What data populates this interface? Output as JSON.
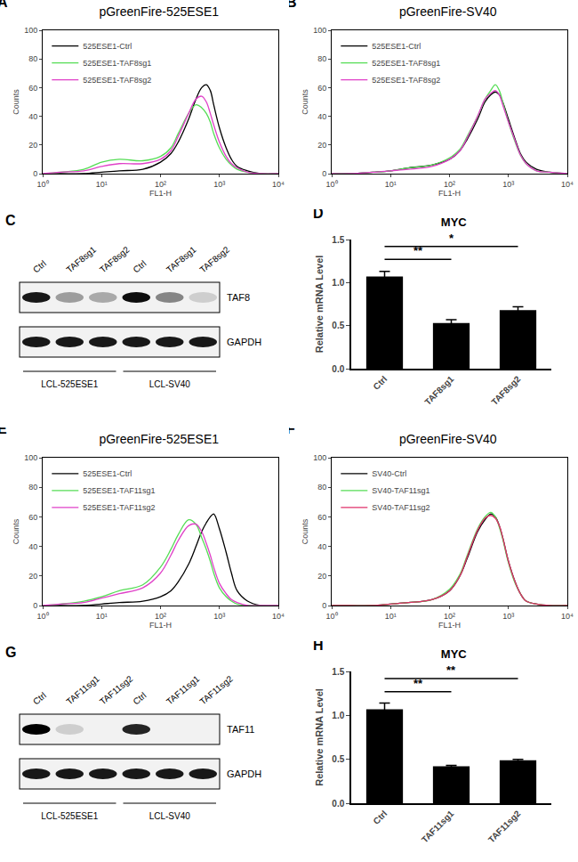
{
  "chart_data": [
    {
      "type": "line",
      "panel_label": "A",
      "title": "pGreenFire-525ESE1",
      "x_label": "FL1-H",
      "y_label": "Counts",
      "log": "x",
      "x": [
        1,
        2,
        5,
        10,
        20,
        50,
        100,
        150,
        200,
        300,
        400,
        500,
        600,
        700,
        800,
        1000,
        1300,
        1600,
        2000,
        3000,
        5000,
        10000
      ],
      "series": [
        {
          "name": "525ESE1-Ctrl",
          "color": "#000000",
          "values": [
            0,
            0,
            0,
            1,
            2,
            3,
            8,
            14,
            22,
            38,
            52,
            60,
            62,
            58,
            48,
            32,
            18,
            10,
            5,
            2,
            0,
            0
          ]
        },
        {
          "name": "525ESE1-TAF8sg1",
          "color": "#55dd55",
          "values": [
            0,
            1,
            3,
            8,
            10,
            9,
            12,
            18,
            28,
            42,
            48,
            46,
            42,
            36,
            28,
            18,
            10,
            6,
            3,
            1,
            0,
            0
          ]
        },
        {
          "name": "525ESE1-TAF8sg2",
          "color": "#e040c8",
          "values": [
            0,
            1,
            2,
            5,
            7,
            7,
            10,
            16,
            26,
            42,
            52,
            54,
            50,
            42,
            34,
            22,
            12,
            7,
            4,
            1,
            0,
            0
          ]
        }
      ],
      "xlim": [
        1,
        10000
      ],
      "xticks": [
        {
          "value": 1,
          "label": "10⁰"
        },
        {
          "value": 10,
          "label": "10¹"
        },
        {
          "value": 100,
          "label": "10²"
        },
        {
          "value": 1000,
          "label": "10³"
        },
        {
          "value": 10000,
          "label": "10⁴"
        }
      ],
      "ylim": [
        0,
        100
      ],
      "yticks": [
        0,
        20,
        40,
        60,
        80,
        100
      ],
      "legend": "upper left"
    },
    {
      "type": "line",
      "panel_label": "B",
      "title": "pGreenFire-SV40",
      "x_label": "FL1-H",
      "y_label": "Counts",
      "log": "x",
      "x": [
        1,
        2,
        5,
        10,
        20,
        50,
        100,
        150,
        200,
        300,
        400,
        500,
        600,
        700,
        800,
        1000,
        1300,
        1600,
        2000,
        3000,
        5000,
        10000
      ],
      "series": [
        {
          "name": "525ESE1-Ctrl",
          "color": "#000000",
          "values": [
            0,
            0,
            1,
            2,
            4,
            6,
            10,
            16,
            24,
            38,
            50,
            55,
            57,
            55,
            50,
            38,
            24,
            14,
            8,
            3,
            1,
            0
          ]
        },
        {
          "name": "525ESE1-TAF8sg1",
          "color": "#55dd55",
          "values": [
            0,
            0,
            1,
            2,
            4,
            6,
            11,
            17,
            26,
            40,
            52,
            58,
            62,
            58,
            50,
            36,
            22,
            13,
            7,
            2,
            1,
            0
          ]
        },
        {
          "name": "525ESE1-TAF8sg2",
          "color": "#e040c8",
          "values": [
            0,
            0,
            1,
            2,
            3,
            5,
            10,
            16,
            25,
            40,
            52,
            56,
            58,
            55,
            48,
            36,
            23,
            13,
            7,
            2,
            1,
            0
          ]
        }
      ],
      "xlim": [
        1,
        10000
      ],
      "xticks": [
        {
          "value": 1,
          "label": "10⁰"
        },
        {
          "value": 10,
          "label": "10¹"
        },
        {
          "value": 100,
          "label": "10²"
        },
        {
          "value": 1000,
          "label": "10³"
        },
        {
          "value": 10000,
          "label": "10⁴"
        }
      ],
      "ylim": [
        0,
        100
      ],
      "yticks": [
        0,
        20,
        40,
        60,
        80,
        100
      ],
      "legend": "upper left"
    },
    {
      "type": "bar",
      "panel_label": "D",
      "title": "MYC",
      "y_label": "Relative mRNA Level",
      "categories": [
        "Ctrl",
        "TAF8sg1",
        "TAF8sg2"
      ],
      "values": [
        1.07,
        0.53,
        0.68
      ],
      "errors": [
        0.06,
        0.04,
        0.04
      ],
      "color": "#000000",
      "ylim": [
        0,
        1.5
      ],
      "yticks": [
        {
          "value": 0,
          "label": "0.0"
        },
        {
          "value": 0.5,
          "label": "0.5"
        },
        {
          "value": 1,
          "label": "1.0"
        },
        {
          "value": 1.5,
          "label": "1.5"
        }
      ],
      "significance": [
        {
          "from": "Ctrl",
          "to": "TAF8sg1",
          "y": 1.27,
          "label": "**"
        },
        {
          "from": "Ctrl",
          "to": "TAF8sg2",
          "y": 1.42,
          "label": "*"
        }
      ]
    },
    {
      "type": "line",
      "panel_label": "E",
      "title": "pGreenFire-525ESE1",
      "x_label": "FL1-H",
      "y_label": "Counts",
      "log": "x",
      "x": [
        1,
        2,
        5,
        10,
        20,
        50,
        100,
        150,
        200,
        300,
        400,
        500,
        600,
        700,
        800,
        1000,
        1300,
        1600,
        2000,
        3000,
        5000,
        10000
      ],
      "series": [
        {
          "name": "525ESE1-Ctrl",
          "color": "#000000",
          "values": [
            0,
            0,
            0,
            1,
            2,
            3,
            6,
            10,
            16,
            28,
            40,
            50,
            56,
            60,
            62,
            52,
            36,
            22,
            10,
            3,
            0,
            0
          ]
        },
        {
          "name": "525ESE1-TAF11sg1",
          "color": "#55dd55",
          "values": [
            0,
            1,
            3,
            6,
            10,
            14,
            26,
            38,
            48,
            58,
            55,
            46,
            38,
            30,
            22,
            12,
            6,
            3,
            1,
            0,
            0,
            0
          ]
        },
        {
          "name": "525ESE1-TAF11sg2",
          "color": "#e040c8",
          "values": [
            0,
            1,
            2,
            5,
            8,
            12,
            22,
            34,
            44,
            54,
            55,
            50,
            42,
            34,
            26,
            15,
            8,
            4,
            2,
            0,
            0,
            0
          ]
        }
      ],
      "xlim": [
        1,
        10000
      ],
      "xticks": [
        {
          "value": 1,
          "label": "10⁰"
        },
        {
          "value": 10,
          "label": "10¹"
        },
        {
          "value": 100,
          "label": "10²"
        },
        {
          "value": 1000,
          "label": "10³"
        },
        {
          "value": 10000,
          "label": "10⁴"
        }
      ],
      "ylim": [
        0,
        100
      ],
      "yticks": [
        0,
        20,
        40,
        60,
        80,
        100
      ],
      "legend": "upper left"
    },
    {
      "type": "line",
      "panel_label": "F",
      "title": "pGreenFire-SV40",
      "x_label": "FL1-H",
      "y_label": "Counts",
      "log": "x",
      "x": [
        1,
        2,
        5,
        10,
        20,
        50,
        100,
        150,
        200,
        300,
        400,
        500,
        600,
        700,
        800,
        1000,
        1300,
        1600,
        2000,
        3000,
        5000,
        10000
      ],
      "series": [
        {
          "name": "SV40-Ctrl",
          "color": "#000000",
          "values": [
            0,
            0,
            0,
            1,
            2,
            4,
            10,
            20,
            32,
            50,
            58,
            62,
            60,
            54,
            46,
            30,
            16,
            8,
            3,
            1,
            0,
            0
          ]
        },
        {
          "name": "SV40-TAF11sg1",
          "color": "#55dd55",
          "values": [
            0,
            0,
            0,
            1,
            2,
            4,
            11,
            21,
            34,
            52,
            60,
            63,
            60,
            53,
            45,
            29,
            15,
            8,
            3,
            1,
            0,
            0
          ]
        },
        {
          "name": "SV40-TAF11sg2",
          "color": "#e0306a",
          "values": [
            0,
            0,
            0,
            1,
            2,
            4,
            10,
            20,
            33,
            51,
            59,
            61,
            59,
            54,
            46,
            30,
            16,
            8,
            3,
            1,
            0,
            0
          ]
        }
      ],
      "xlim": [
        1,
        10000
      ],
      "xticks": [
        {
          "value": 1,
          "label": "10⁰"
        },
        {
          "value": 10,
          "label": "10¹"
        },
        {
          "value": 100,
          "label": "10²"
        },
        {
          "value": 1000,
          "label": "10³"
        },
        {
          "value": 10000,
          "label": "10⁴"
        }
      ],
      "ylim": [
        0,
        100
      ],
      "yticks": [
        0,
        20,
        40,
        60,
        80,
        100
      ],
      "legend": "upper left"
    },
    {
      "type": "bar",
      "panel_label": "H",
      "title": "MYC",
      "y_label": "Relative mRNA Level",
      "categories": [
        "Ctrl",
        "TAF11sg1",
        "TAF11sg2"
      ],
      "values": [
        1.07,
        0.42,
        0.49
      ],
      "errors": [
        0.07,
        0.01,
        0.01
      ],
      "color": "#000000",
      "ylim": [
        0,
        1.5
      ],
      "yticks": [
        {
          "value": 0,
          "label": "0.0"
        },
        {
          "value": 0.5,
          "label": "0.5"
        },
        {
          "value": 1,
          "label": "1.0"
        },
        {
          "value": 1.5,
          "label": "1.5"
        }
      ],
      "significance": [
        {
          "from": "Ctrl",
          "to": "TAF11sg1",
          "y": 1.27,
          "label": "**"
        },
        {
          "from": "Ctrl",
          "to": "TAF11sg2",
          "y": 1.42,
          "label": "**"
        }
      ]
    }
  ],
  "blots": [
    {
      "panel_label": "C",
      "lanes": [
        "Ctrl",
        "TAF8sg1",
        "TAF8sg2",
        "Ctrl",
        "TAF8sg1",
        "TAF8sg2"
      ],
      "rows": [
        {
          "label": "TAF8",
          "band_intensity": [
            0.9,
            0.35,
            0.3,
            0.95,
            0.45,
            0.15
          ]
        },
        {
          "label": "GAPDH",
          "band_intensity": [
            0.9,
            0.9,
            0.9,
            0.9,
            0.9,
            0.9
          ]
        }
      ],
      "groups": [
        "LCL-525ESE1",
        "LCL-SV40"
      ]
    },
    {
      "panel_label": "G",
      "lanes": [
        "Ctrl",
        "TAF11sg1",
        "TAF11sg2",
        "Ctrl",
        "TAF11sg1",
        "TAF11sg2"
      ],
      "rows": [
        {
          "label": "TAF11",
          "band_intensity": [
            1,
            0.15,
            0,
            0.85,
            0,
            0
          ]
        },
        {
          "label": "GAPDH",
          "band_intensity": [
            0.9,
            0.9,
            0.9,
            0.9,
            0.9,
            0.9
          ]
        }
      ],
      "groups": [
        "LCL-525ESE1",
        "LCL-SV40"
      ]
    }
  ]
}
